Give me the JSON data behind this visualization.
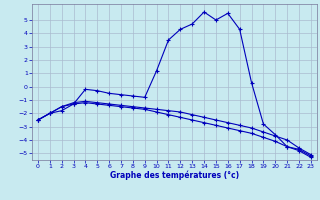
{
  "xlabel": "Graphe des températures (°c)",
  "xlim": [
    -0.5,
    23.5
  ],
  "ylim": [
    -5.5,
    6.2
  ],
  "yticks": [
    -5,
    -4,
    -3,
    -2,
    -1,
    0,
    1,
    2,
    3,
    4,
    5
  ],
  "xticks": [
    0,
    1,
    2,
    3,
    4,
    5,
    6,
    7,
    8,
    9,
    10,
    11,
    12,
    13,
    14,
    15,
    16,
    17,
    18,
    19,
    20,
    21,
    22,
    23
  ],
  "bg_color": "#c8eaf0",
  "grid_color": "#aabbd0",
  "line_color": "#0000bb",
  "line1_x": [
    0,
    1,
    2,
    3,
    4,
    5,
    6,
    7,
    8,
    9,
    10,
    11,
    12,
    13,
    14,
    15,
    16,
    17,
    18,
    19,
    20,
    21,
    22,
    23
  ],
  "line1_y": [
    -2.5,
    -2.0,
    -1.8,
    -1.3,
    -0.2,
    -0.3,
    -0.5,
    -0.6,
    -0.7,
    -0.8,
    1.2,
    3.5,
    4.3,
    4.7,
    5.6,
    5.0,
    5.5,
    4.3,
    0.3,
    -2.8,
    -3.6,
    -4.5,
    -4.7,
    -5.2
  ],
  "line2_x": [
    0,
    1,
    2,
    3,
    4,
    5,
    6,
    7,
    8,
    9,
    10,
    11,
    12,
    13,
    14,
    15,
    16,
    17,
    18,
    19,
    20,
    21,
    22,
    23
  ],
  "line2_y": [
    -2.5,
    -2.0,
    -1.5,
    -1.2,
    -1.1,
    -1.2,
    -1.3,
    -1.4,
    -1.5,
    -1.6,
    -1.7,
    -1.8,
    -1.9,
    -2.1,
    -2.3,
    -2.5,
    -2.7,
    -2.9,
    -3.1,
    -3.4,
    -3.7,
    -4.0,
    -4.6,
    -5.1
  ],
  "line3_x": [
    0,
    1,
    2,
    3,
    4,
    5,
    6,
    7,
    8,
    9,
    10,
    11,
    12,
    13,
    14,
    15,
    16,
    17,
    18,
    19,
    20,
    21,
    22,
    23
  ],
  "line3_y": [
    -2.5,
    -2.0,
    -1.5,
    -1.3,
    -1.2,
    -1.3,
    -1.4,
    -1.5,
    -1.6,
    -1.7,
    -1.9,
    -2.1,
    -2.3,
    -2.5,
    -2.7,
    -2.9,
    -3.1,
    -3.3,
    -3.5,
    -3.8,
    -4.1,
    -4.5,
    -4.8,
    -5.3
  ],
  "marker": "+",
  "lw": 0.8,
  "markersize": 3.0,
  "tick_fontsize": 4.5,
  "xlabel_fontsize": 5.5
}
